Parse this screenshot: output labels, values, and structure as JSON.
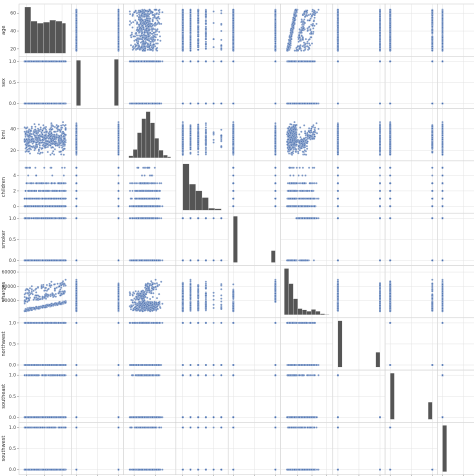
{
  "chart_data": {
    "type": "scatter",
    "subtype": "pairplot",
    "grid": true,
    "colors": {
      "point": "#4c72b0",
      "hist": "#555555",
      "grid": "#e4e4e4",
      "frame": "#cccccc"
    },
    "variables": [
      {
        "name": "age",
        "label": "age",
        "kind": "continuous",
        "range": [
          15,
          67
        ],
        "ticks": [
          20,
          40,
          60
        ]
      },
      {
        "name": "sex",
        "label": "sex",
        "kind": "binary",
        "range": [
          -0.05,
          1.05
        ],
        "ticks": [
          0.0,
          0.5,
          1.0
        ]
      },
      {
        "name": "bmi",
        "label": "bmi",
        "kind": "continuous",
        "range": [
          13,
          56
        ],
        "ticks": [
          20,
          40
        ]
      },
      {
        "name": "children",
        "label": "children",
        "kind": "discrete",
        "values": [
          0,
          1,
          2,
          3,
          4,
          5
        ],
        "range": [
          -0.5,
          5.5
        ],
        "ticks": [
          0,
          2,
          4
        ]
      },
      {
        "name": "smoker",
        "label": "smoker",
        "kind": "binary",
        "range": [
          -0.05,
          1.05
        ],
        "ticks": [
          0.0,
          0.5,
          1.0
        ]
      },
      {
        "name": "charges",
        "label": "charges",
        "kind": "continuous",
        "range": [
          0,
          65000
        ],
        "ticks": [
          20000,
          40000,
          60000
        ]
      },
      {
        "name": "northwest",
        "label": "northwest",
        "kind": "binary",
        "range": [
          -0.05,
          1.05
        ],
        "ticks": [
          0.0,
          0.5,
          1.0
        ]
      },
      {
        "name": "southeast",
        "label": "southeast",
        "kind": "binary",
        "range": [
          -0.05,
          1.05
        ],
        "ticks": [
          0.0,
          0.5,
          1.0
        ]
      },
      {
        "name": "southwest",
        "label": "southwest",
        "kind": "binary",
        "range": [
          -0.05,
          1.05
        ],
        "ticks": [
          0.0,
          0.5,
          1.0
        ]
      }
    ],
    "diagonal_histograms": [
      {
        "variable": "age",
        "bins": [
          18,
          25,
          32,
          39,
          46,
          53,
          60,
          64
        ],
        "counts": [
          230,
          160,
          150,
          155,
          165,
          160,
          150
        ]
      },
      {
        "variable": "sex",
        "bins": [
          0,
          0.1,
          0.9,
          1.0
        ],
        "counts": [
          662,
          0,
          676
        ]
      },
      {
        "variable": "bmi",
        "bins": [
          15,
          19,
          23,
          27,
          31,
          35,
          39,
          43,
          47,
          51,
          54
        ],
        "counts": [
          15,
          60,
          180,
          280,
          330,
          250,
          140,
          55,
          20,
          8
        ]
      },
      {
        "variable": "children",
        "bins": [
          0,
          0.83,
          1.67,
          2.5,
          3.33,
          4.17,
          5
        ],
        "counts": [
          574,
          324,
          240,
          157,
          25,
          18
        ]
      },
      {
        "variable": "smoker",
        "bins": [
          0,
          0.1,
          0.9,
          1.0
        ],
        "counts": [
          1064,
          0,
          274
        ]
      },
      {
        "variable": "charges",
        "bins": [
          1100,
          7400,
          13700,
          20000,
          26300,
          32600,
          38900,
          45200,
          51500,
          57800,
          64000
        ],
        "counts": [
          520,
          350,
          180,
          70,
          55,
          40,
          60,
          40,
          12,
          4
        ]
      },
      {
        "variable": "northwest",
        "bins": [
          0,
          0.1,
          0.9,
          1.0
        ],
        "counts": [
          1013,
          0,
          325
        ]
      },
      {
        "variable": "southeast",
        "bins": [
          0,
          0.1,
          0.9,
          1.0
        ],
        "counts": [
          974,
          0,
          364
        ]
      },
      {
        "variable": "southwest",
        "bins": [
          0,
          0.1,
          0.9,
          1.0
        ],
        "counts": [
          1013,
          0,
          325
        ]
      }
    ]
  }
}
